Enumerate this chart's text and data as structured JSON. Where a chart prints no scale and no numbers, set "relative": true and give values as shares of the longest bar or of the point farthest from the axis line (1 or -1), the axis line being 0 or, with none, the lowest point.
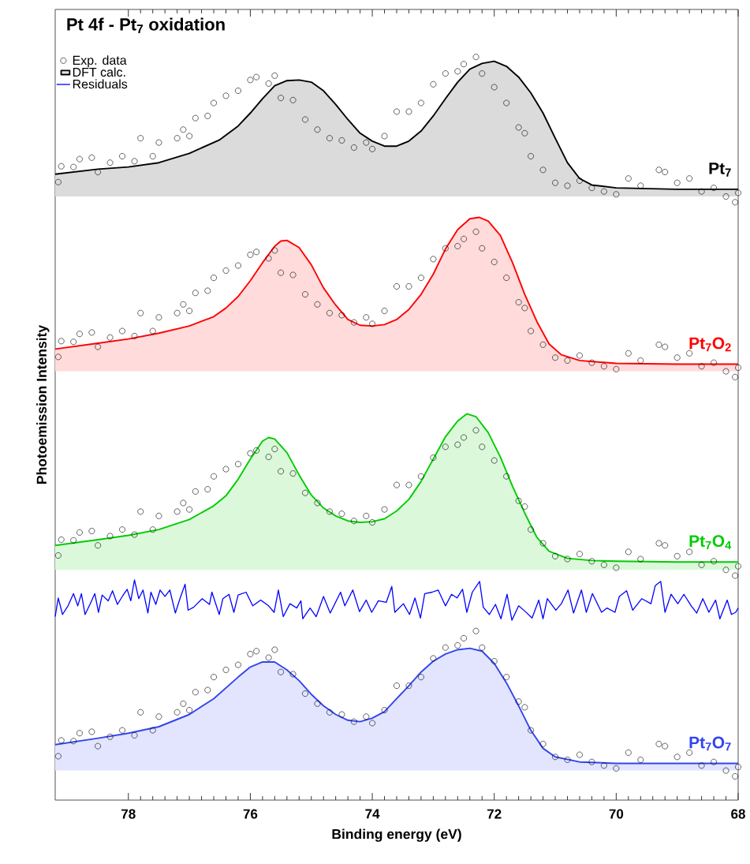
{
  "chart_data": {
    "type": "scatter",
    "title": "Pt 4f - Pt$_{7}$ oxidation",
    "xlabel": "Binding energy (eV)",
    "ylabel": "Photoemission Intensity",
    "relative": true,
    "xlim": [
      79.2,
      68
    ],
    "xticks": [
      78,
      76,
      74,
      72,
      70,
      68
    ],
    "tick_labels": "x",
    "legend": "top left",
    "annotations": [
      "Pt$_{7}$",
      "Pt$_{7}$O$_{2}$",
      "Pt$_{7}$O$_{4}$",
      "Pt$_{7}$O$_{7}$"
    ],
    "series": [
      {
        "name": "Exp. data",
        "color": "#000000",
        "marker": "circle",
        "x": [
          79.15,
          79.1,
          78.9,
          78.8,
          78.6,
          78.5,
          78.3,
          78.1,
          77.9,
          77.8,
          77.6,
          77.5,
          77.2,
          77.1,
          77.0,
          76.9,
          76.7,
          76.6,
          76.4,
          76.2,
          76.0,
          75.9,
          75.7,
          75.6,
          75.5,
          75.3,
          75.1,
          74.9,
          74.7,
          74.5,
          74.3,
          74.1,
          74.0,
          73.8,
          73.6,
          73.4,
          73.2,
          73.0,
          72.8,
          72.6,
          72.5,
          72.3,
          72.2,
          72.0,
          71.8,
          71.6,
          71.5,
          71.4,
          71.2,
          71.0,
          70.8,
          70.6,
          70.4,
          70.2,
          70.0,
          69.8,
          69.6,
          69.3,
          69.2,
          69.0,
          68.8,
          68.6,
          68.4,
          68.2,
          68.05,
          68.0
        ],
        "values": [
          0.826,
          0.848,
          0.847,
          0.858,
          0.86,
          0.84,
          0.853,
          0.862,
          0.855,
          0.887,
          0.862,
          0.881,
          0.887,
          0.899,
          0.89,
          0.915,
          0.918,
          0.936,
          0.946,
          0.953,
          0.968,
          0.972,
          0.963,
          0.974,
          0.943,
          0.94,
          0.913,
          0.899,
          0.887,
          0.884,
          0.874,
          0.881,
          0.872,
          0.89,
          0.924,
          0.924,
          0.936,
          0.962,
          0.977,
          0.98,
          0.99,
          1.0,
          0.977,
          0.958,
          0.936,
          0.902,
          0.894,
          0.862,
          0.843,
          0.825,
          0.821,
          0.828,
          0.818,
          0.813,
          0.809,
          0.831,
          0.821,
          0.843,
          0.84,
          0.825,
          0.831,
          0.813,
          0.818,
          0.806,
          0.798,
          0.811
        ]
      },
      {
        "type": "line",
        "name": "DFT calc.",
        "color": "#000000",
        "x": [
          79.2,
          78.5,
          78.0,
          77.5,
          77.0,
          76.5,
          76.2,
          76.0,
          75.8,
          75.6,
          75.4,
          75.2,
          75.0,
          74.8,
          74.6,
          74.4,
          74.2,
          74.0,
          73.8,
          73.6,
          73.4,
          73.2,
          73.0,
          72.8,
          72.6,
          72.4,
          72.2,
          72.0,
          71.8,
          71.6,
          71.4,
          71.2,
          71.0,
          70.8,
          70.6,
          70.4,
          70.0,
          69.0,
          68.0
        ],
        "values": [
          0.837,
          0.844,
          0.847,
          0.853,
          0.866,
          0.885,
          0.904,
          0.922,
          0.942,
          0.96,
          0.967,
          0.968,
          0.965,
          0.953,
          0.934,
          0.913,
          0.894,
          0.883,
          0.876,
          0.876,
          0.883,
          0.897,
          0.918,
          0.942,
          0.965,
          0.983,
          0.991,
          0.994,
          0.987,
          0.972,
          0.95,
          0.922,
          0.887,
          0.853,
          0.831,
          0.822,
          0.818,
          0.816,
          0.816
        ],
        "upper": [
          0.837,
          0.844,
          0.847,
          0.853,
          0.866,
          0.885,
          0.904,
          0.922,
          0.942,
          0.96,
          0.967,
          0.968,
          0.965,
          0.953,
          0.934,
          0.913,
          0.894,
          0.883,
          0.876,
          0.876,
          0.883,
          0.897,
          0.918,
          0.942,
          0.965,
          0.983,
          0.991,
          0.994,
          0.987,
          0.972,
          0.95,
          0.922,
          0.887,
          0.853,
          0.831,
          0.822,
          0.818,
          0.816,
          0.816
        ],
        "lower": [
          0.806,
          0.806,
          0.806,
          0.806,
          0.806,
          0.806,
          0.806,
          0.806,
          0.806,
          0.806,
          0.806,
          0.806,
          0.806,
          0.806,
          0.806,
          0.806,
          0.806,
          0.806,
          0.806,
          0.806,
          0.806,
          0.806,
          0.806,
          0.806,
          0.806,
          0.806,
          0.806,
          0.806,
          0.806,
          0.806,
          0.806,
          0.806,
          0.806,
          0.806,
          0.806,
          0.806,
          0.806,
          0.806,
          0.806
        ]
      },
      {
        "color": "#000000",
        "marker": "circle",
        "x": [
          79.15,
          79.1,
          78.9,
          78.8,
          78.6,
          78.5,
          78.3,
          78.1,
          77.9,
          77.8,
          77.6,
          77.5,
          77.2,
          77.1,
          77.0,
          76.9,
          76.7,
          76.6,
          76.4,
          76.2,
          76.0,
          75.9,
          75.7,
          75.6,
          75.5,
          75.3,
          75.1,
          74.9,
          74.7,
          74.5,
          74.3,
          74.1,
          74.0,
          73.8,
          73.6,
          73.4,
          73.2,
          73.0,
          72.8,
          72.6,
          72.5,
          72.3,
          72.2,
          72.0,
          71.8,
          71.6,
          71.5,
          71.4,
          71.2,
          71.0,
          70.8,
          70.6,
          70.4,
          70.2,
          70.0,
          69.8,
          69.6,
          69.3,
          69.2,
          69.0,
          68.8,
          68.6,
          68.4,
          68.2,
          68.05,
          68.0
        ],
        "values": [
          0.583,
          0.605,
          0.604,
          0.615,
          0.617,
          0.597,
          0.61,
          0.619,
          0.612,
          0.644,
          0.619,
          0.638,
          0.644,
          0.656,
          0.647,
          0.672,
          0.675,
          0.693,
          0.703,
          0.71,
          0.725,
          0.729,
          0.72,
          0.731,
          0.7,
          0.697,
          0.67,
          0.656,
          0.644,
          0.641,
          0.631,
          0.638,
          0.629,
          0.647,
          0.681,
          0.681,
          0.693,
          0.719,
          0.734,
          0.737,
          0.747,
          0.757,
          0.734,
          0.715,
          0.693,
          0.659,
          0.651,
          0.619,
          0.6,
          0.582,
          0.578,
          0.585,
          0.575,
          0.57,
          0.566,
          0.588,
          0.578,
          0.6,
          0.597,
          0.582,
          0.588,
          0.57,
          0.575,
          0.563,
          0.555,
          0.568
        ]
      },
      {
        "type": "line",
        "color": "#ff0000",
        "x": [
          79.2,
          78.5,
          78.0,
          77.5,
          77.0,
          76.6,
          76.4,
          76.2,
          76.0,
          75.8,
          75.6,
          75.5,
          75.4,
          75.2,
          75.0,
          74.8,
          74.6,
          74.4,
          74.2,
          74.0,
          73.8,
          73.6,
          73.4,
          73.2,
          73.0,
          72.8,
          72.6,
          72.4,
          72.25,
          72.1,
          71.9,
          71.7,
          71.5,
          71.3,
          71.1,
          70.9,
          70.6,
          70.0,
          69.0,
          68.0
        ],
        "values": [
          0.594,
          0.602,
          0.608,
          0.616,
          0.626,
          0.639,
          0.651,
          0.667,
          0.689,
          0.714,
          0.737,
          0.744,
          0.745,
          0.735,
          0.711,
          0.679,
          0.655,
          0.635,
          0.627,
          0.626,
          0.628,
          0.635,
          0.649,
          0.67,
          0.698,
          0.733,
          0.76,
          0.775,
          0.777,
          0.772,
          0.752,
          0.714,
          0.67,
          0.632,
          0.601,
          0.586,
          0.578,
          0.574,
          0.573,
          0.573
        ],
        "upper": [
          0.594,
          0.602,
          0.608,
          0.616,
          0.626,
          0.639,
          0.651,
          0.667,
          0.689,
          0.714,
          0.737,
          0.744,
          0.745,
          0.735,
          0.711,
          0.679,
          0.655,
          0.635,
          0.627,
          0.626,
          0.628,
          0.635,
          0.649,
          0.67,
          0.698,
          0.733,
          0.76,
          0.775,
          0.777,
          0.772,
          0.752,
          0.714,
          0.67,
          0.632,
          0.601,
          0.586,
          0.578,
          0.574,
          0.573,
          0.573
        ],
        "lower": [
          0.563,
          0.563,
          0.563,
          0.563,
          0.563,
          0.563,
          0.563,
          0.563,
          0.563,
          0.563,
          0.563,
          0.563,
          0.563,
          0.563,
          0.563,
          0.563,
          0.563,
          0.563,
          0.563,
          0.563,
          0.563,
          0.563,
          0.563,
          0.563,
          0.563,
          0.563,
          0.563,
          0.563,
          0.563,
          0.563,
          0.563,
          0.563,
          0.563,
          0.563,
          0.563,
          0.563,
          0.563,
          0.563,
          0.563,
          0.563
        ]
      },
      {
        "color": "#000000",
        "marker": "circle",
        "x": [
          79.15,
          79.1,
          78.9,
          78.8,
          78.6,
          78.5,
          78.3,
          78.1,
          77.9,
          77.8,
          77.6,
          77.5,
          77.2,
          77.1,
          77.0,
          76.9,
          76.7,
          76.6,
          76.4,
          76.2,
          76.0,
          75.9,
          75.7,
          75.6,
          75.5,
          75.3,
          75.1,
          74.9,
          74.7,
          74.5,
          74.3,
          74.1,
          74.0,
          73.8,
          73.6,
          73.4,
          73.2,
          73.0,
          72.8,
          72.6,
          72.5,
          72.3,
          72.2,
          72.0,
          71.8,
          71.6,
          71.5,
          71.4,
          71.2,
          71.0,
          70.8,
          70.6,
          70.4,
          70.2,
          70.0,
          69.8,
          69.6,
          69.3,
          69.2,
          69.0,
          68.8,
          68.6,
          68.4,
          68.2,
          68.05,
          68.0
        ],
        "values": [
          0.307,
          0.329,
          0.328,
          0.339,
          0.341,
          0.321,
          0.334,
          0.343,
          0.336,
          0.368,
          0.343,
          0.362,
          0.368,
          0.38,
          0.371,
          0.396,
          0.399,
          0.417,
          0.427,
          0.434,
          0.449,
          0.453,
          0.444,
          0.455,
          0.424,
          0.421,
          0.394,
          0.38,
          0.368,
          0.365,
          0.355,
          0.362,
          0.353,
          0.371,
          0.405,
          0.405,
          0.417,
          0.443,
          0.458,
          0.461,
          0.471,
          0.481,
          0.458,
          0.439,
          0.417,
          0.383,
          0.375,
          0.343,
          0.324,
          0.306,
          0.302,
          0.309,
          0.299,
          0.294,
          0.29,
          0.312,
          0.302,
          0.324,
          0.321,
          0.306,
          0.312,
          0.294,
          0.299,
          0.287,
          0.279,
          0.292
        ]
      },
      {
        "type": "line",
        "color": "#00cc00",
        "x": [
          79.2,
          78.5,
          78.0,
          77.5,
          77.0,
          76.6,
          76.4,
          76.2,
          76.0,
          75.8,
          75.7,
          75.6,
          75.4,
          75.2,
          75.0,
          74.8,
          74.6,
          74.4,
          74.2,
          74.0,
          73.8,
          73.6,
          73.4,
          73.2,
          73.0,
          72.8,
          72.6,
          72.45,
          72.3,
          72.1,
          71.9,
          71.7,
          71.5,
          71.3,
          71.1,
          70.8,
          70.4,
          70.0,
          69.0,
          68.0
        ],
        "values": [
          0.321,
          0.329,
          0.335,
          0.343,
          0.357,
          0.376,
          0.39,
          0.413,
          0.441,
          0.466,
          0.471,
          0.469,
          0.45,
          0.419,
          0.391,
          0.373,
          0.362,
          0.355,
          0.353,
          0.354,
          0.358,
          0.369,
          0.385,
          0.41,
          0.441,
          0.472,
          0.494,
          0.504,
          0.5,
          0.478,
          0.444,
          0.403,
          0.366,
          0.332,
          0.313,
          0.303,
          0.3,
          0.299,
          0.298,
          0.298
        ],
        "upper": [
          0.321,
          0.329,
          0.335,
          0.343,
          0.357,
          0.376,
          0.39,
          0.413,
          0.441,
          0.466,
          0.471,
          0.469,
          0.45,
          0.419,
          0.391,
          0.373,
          0.362,
          0.355,
          0.353,
          0.354,
          0.358,
          0.369,
          0.385,
          0.41,
          0.441,
          0.472,
          0.494,
          0.504,
          0.5,
          0.478,
          0.444,
          0.403,
          0.366,
          0.332,
          0.313,
          0.303,
          0.3,
          0.299,
          0.298,
          0.298
        ],
        "lower": [
          0.287,
          0.287,
          0.287,
          0.287,
          0.287,
          0.287,
          0.287,
          0.287,
          0.287,
          0.287,
          0.287,
          0.287,
          0.287,
          0.287,
          0.287,
          0.287,
          0.287,
          0.287,
          0.287,
          0.287,
          0.287,
          0.287,
          0.287,
          0.287,
          0.287,
          0.287,
          0.287,
          0.287,
          0.287,
          0.287,
          0.287,
          0.287,
          0.287,
          0.287,
          0.287,
          0.287,
          0.287,
          0.287,
          0.287,
          0.287
        ]
      },
      {
        "type": "line",
        "name": "Residuals",
        "color": "#0000ff",
        "x": [
          79.2,
          79.15,
          79.08,
          78.99,
          78.9,
          78.83,
          78.77,
          78.71,
          78.63,
          78.55,
          78.49,
          78.43,
          78.33,
          78.26,
          78.18,
          78.1,
          78.02,
          77.96,
          77.9,
          77.83,
          77.76,
          77.68,
          77.63,
          77.55,
          77.48,
          77.4,
          77.32,
          77.23,
          77.15,
          77.07,
          77.02,
          76.93,
          76.79,
          76.67,
          76.63,
          76.51,
          76.45,
          76.35,
          76.27,
          76.2,
          76.07,
          75.96,
          75.83,
          75.7,
          75.61,
          75.54,
          75.46,
          75.35,
          75.24,
          75.17,
          75.14,
          75.02,
          74.92,
          74.8,
          74.69,
          74.52,
          74.45,
          74.32,
          74.21,
          74.1,
          74.01,
          73.9,
          73.77,
          73.68,
          73.63,
          73.49,
          73.39,
          73.3,
          73.21,
          73.14,
          73.02,
          72.92,
          72.8,
          72.7,
          72.61,
          72.52,
          72.45,
          72.36,
          72.24,
          72.18,
          72.08,
          71.98,
          71.89,
          71.79,
          71.71,
          71.6,
          71.49,
          71.38,
          71.27,
          71.2,
          71.13,
          70.99,
          70.9,
          70.79,
          70.7,
          70.57,
          70.49,
          70.39,
          70.24,
          70.15,
          70.02,
          69.95,
          69.83,
          69.73,
          69.58,
          69.43,
          69.36,
          69.27,
          69.2,
          69.1,
          68.99,
          68.89,
          68.77,
          68.68,
          68.58,
          68.48,
          68.37,
          68.3,
          68.18,
          68.11,
          68.04,
          68.0
        ],
        "values": [
          0.222,
          0.248,
          0.225,
          0.237,
          0.254,
          0.237,
          0.254,
          0.225,
          0.239,
          0.254,
          0.228,
          0.252,
          0.244,
          0.258,
          0.239,
          0.25,
          0.26,
          0.244,
          0.273,
          0.247,
          0.259,
          0.227,
          0.256,
          0.239,
          0.259,
          0.25,
          0.259,
          0.227,
          0.248,
          0.267,
          0.231,
          0.235,
          0.247,
          0.239,
          0.256,
          0.225,
          0.247,
          0.253,
          0.228,
          0.252,
          0.256,
          0.237,
          0.245,
          0.237,
          0.228,
          0.259,
          0.222,
          0.24,
          0.234,
          0.244,
          0.219,
          0.234,
          0.222,
          0.25,
          0.227,
          0.256,
          0.237,
          0.259,
          0.229,
          0.245,
          0.228,
          0.244,
          0.242,
          0.264,
          0.228,
          0.24,
          0.225,
          0.248,
          0.22,
          0.254,
          0.256,
          0.259,
          0.237,
          0.253,
          0.248,
          0.26,
          0.228,
          0.256,
          0.271,
          0.235,
          0.225,
          0.239,
          0.219,
          0.253,
          0.217,
          0.237,
          0.229,
          0.22,
          0.245,
          0.219,
          0.247,
          0.231,
          0.24,
          0.259,
          0.227,
          0.259,
          0.228,
          0.254,
          0.228,
          0.234,
          0.228,
          0.25,
          0.258,
          0.231,
          0.247,
          0.24,
          0.265,
          0.271,
          0.228,
          0.253,
          0.24,
          0.253,
          0.237,
          0.227,
          0.247,
          0.228,
          0.245,
          0.219,
          0.245,
          0.225,
          0.228,
          0.234
        ]
      },
      {
        "color": "#000000",
        "marker": "circle",
        "x": [
          79.15,
          79.1,
          78.9,
          78.8,
          78.6,
          78.5,
          78.3,
          78.1,
          77.9,
          77.8,
          77.6,
          77.5,
          77.2,
          77.1,
          77.0,
          76.9,
          76.7,
          76.6,
          76.4,
          76.2,
          76.0,
          75.9,
          75.7,
          75.6,
          75.5,
          75.3,
          75.1,
          74.9,
          74.7,
          74.5,
          74.3,
          74.1,
          74.0,
          73.8,
          73.6,
          73.4,
          73.2,
          73.0,
          72.8,
          72.6,
          72.5,
          72.3,
          72.2,
          72.0,
          71.8,
          71.6,
          71.5,
          71.4,
          71.2,
          71.0,
          70.8,
          70.6,
          70.4,
          70.2,
          70.0,
          69.8,
          69.6,
          69.3,
          69.2,
          69.0,
          68.8,
          68.6,
          68.4,
          68.2,
          68.05,
          68.0
        ],
        "values": [
          0.028,
          0.05,
          0.049,
          0.06,
          0.062,
          0.042,
          0.055,
          0.064,
          0.057,
          0.089,
          0.064,
          0.083,
          0.089,
          0.101,
          0.092,
          0.117,
          0.12,
          0.138,
          0.148,
          0.155,
          0.17,
          0.174,
          0.165,
          0.176,
          0.145,
          0.142,
          0.115,
          0.101,
          0.089,
          0.086,
          0.076,
          0.083,
          0.074,
          0.092,
          0.126,
          0.126,
          0.138,
          0.164,
          0.179,
          0.182,
          0.192,
          0.202,
          0.179,
          0.16,
          0.138,
          0.104,
          0.096,
          0.064,
          0.045,
          0.027,
          0.023,
          0.03,
          0.02,
          0.015,
          0.011,
          0.033,
          0.023,
          0.045,
          0.042,
          0.027,
          0.033,
          0.015,
          0.02,
          0.008,
          0.0,
          0.013
        ]
      },
      {
        "type": "line",
        "color": "#3344ee",
        "x": [
          79.2,
          78.5,
          78.0,
          77.5,
          77.0,
          76.6,
          76.2,
          76.0,
          75.8,
          75.6,
          75.4,
          75.2,
          75.0,
          74.8,
          74.6,
          74.4,
          74.2,
          74.0,
          73.8,
          73.6,
          73.4,
          73.2,
          73.0,
          72.8,
          72.6,
          72.4,
          72.2,
          72.0,
          71.8,
          71.6,
          71.4,
          71.2,
          71.0,
          70.6,
          70.0,
          69.0,
          68.0
        ],
        "values": [
          0.044,
          0.053,
          0.06,
          0.069,
          0.086,
          0.108,
          0.138,
          0.152,
          0.159,
          0.159,
          0.148,
          0.133,
          0.114,
          0.098,
          0.086,
          0.078,
          0.076,
          0.081,
          0.09,
          0.108,
          0.126,
          0.145,
          0.16,
          0.17,
          0.176,
          0.178,
          0.174,
          0.157,
          0.13,
          0.098,
          0.064,
          0.039,
          0.027,
          0.02,
          0.018,
          0.018,
          0.018
        ],
        "upper": [
          0.044,
          0.053,
          0.06,
          0.069,
          0.086,
          0.108,
          0.138,
          0.152,
          0.159,
          0.159,
          0.148,
          0.133,
          0.114,
          0.098,
          0.086,
          0.078,
          0.076,
          0.081,
          0.09,
          0.108,
          0.126,
          0.145,
          0.16,
          0.17,
          0.176,
          0.178,
          0.174,
          0.157,
          0.13,
          0.098,
          0.064,
          0.039,
          0.027,
          0.02,
          0.018,
          0.018,
          0.018
        ],
        "lower": [
          0.008,
          0.008,
          0.008,
          0.008,
          0.008,
          0.008,
          0.008,
          0.008,
          0.008,
          0.008,
          0.008,
          0.008,
          0.008,
          0.008,
          0.008,
          0.008,
          0.008,
          0.008,
          0.008,
          0.008,
          0.008,
          0.008,
          0.008,
          0.008,
          0.008,
          0.008,
          0.008,
          0.008,
          0.008,
          0.008,
          0.008,
          0.008,
          0.008,
          0.008,
          0.008,
          0.008,
          0.008
        ]
      }
    ]
  }
}
